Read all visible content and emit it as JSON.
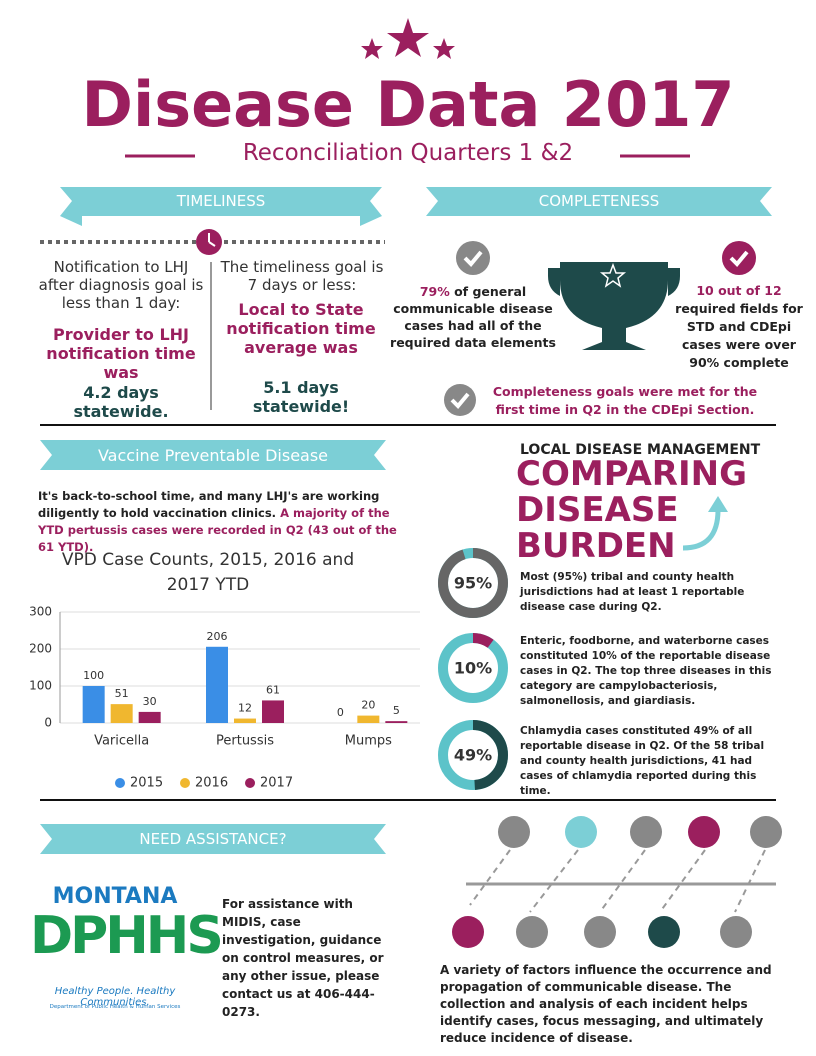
{
  "header": {
    "title": "Disease Data 2017",
    "subtitle": "Reconciliation Quarters 1 &2"
  },
  "timeliness": {
    "banner": "TIMELINESS",
    "left": {
      "goal": "Notification to LHJ after diagnosis goal is less than 1 day:",
      "result": "Provider to LHJ notification time was",
      "figure": "4.2 days statewide."
    },
    "right": {
      "goal": "The timeliness goal is 7 days or less:",
      "result": "Local to State notification time average was",
      "figure": "5.1 days statewide!"
    }
  },
  "completeness": {
    "banner": "COMPLETENESS",
    "left": {
      "highlight": "79%",
      "text": "of general communicable disease cases had all of the required data elements"
    },
    "right": {
      "highlight": "10 out of 12",
      "text": "required fields for STD and CDEpi cases were over 90% complete"
    },
    "note": "Completeness goals were met for the first time in Q2 in the CDEpi Section."
  },
  "vpd": {
    "banner": "Vaccine Preventable Disease",
    "text": "It's back-to-school time, and many LHJ's are working diligently to hold vaccination clinics.",
    "highlight": "A majority of the YTD pertussis cases were recorded in Q2 (43 out of the 61 YTD)."
  },
  "chart_data": {
    "type": "bar",
    "title": "VPD Case Counts, 2015, 2016 and 2017 YTD",
    "categories": [
      "Varicella",
      "Pertussis",
      "Mumps"
    ],
    "series": [
      {
        "name": "2015",
        "color": "#3a8ee6",
        "values": [
          100,
          206,
          0
        ]
      },
      {
        "name": "2016",
        "color": "#f0b72f",
        "values": [
          51,
          12,
          20
        ]
      },
      {
        "name": "2017",
        "color": "#9b1f5e",
        "values": [
          30,
          61,
          5
        ]
      }
    ],
    "ylim": [
      0,
      300
    ],
    "yticks": [
      0,
      100,
      200,
      300
    ],
    "grid": true,
    "legend": "bottom"
  },
  "disease_management": {
    "kicker": "LOCAL DISEASE MANAGEMENT",
    "title": [
      "COMPARING",
      "DISEASE",
      "BURDEN"
    ],
    "items": [
      {
        "value": 95,
        "label": "95%",
        "color": "#666666",
        "text": "Most (95%) tribal and county health jurisdictions had at least 1 reportable disease case during Q2."
      },
      {
        "value": 10,
        "label": "10%",
        "color": "#9b1f5e",
        "text": "Enteric, foodborne, and waterborne cases constituted 10% of the reportable disease cases in Q2.  The top three diseases in this category are campylobacteriosis, salmonellosis, and giardiasis."
      },
      {
        "value": 49,
        "label": "49%",
        "color": "#1e4a4a",
        "text": "Chlamydia cases constituted 49% of all reportable disease in Q2.  Of the 58 tribal and county health jurisdictions, 41 had cases of chlamydia reported during this time."
      }
    ]
  },
  "assistance": {
    "banner": "NEED ASSISTANCE?",
    "logo": {
      "state": "MONTANA",
      "name": "DPHHS",
      "tagline": "Healthy People. Healthy Communities.",
      "department": "Department of Public Health & Human Services"
    },
    "text": "For assistance with MIDIS, case investigation, guidance on control measures, or any other issue, please contact us at 406-444-0273."
  },
  "factors": {
    "text": "A variety of factors influence the occurrence and propagation of communicable disease.  The collection and analysis of each incident helps identify cases, focus messaging, and ultimately reduce incidence of disease."
  }
}
